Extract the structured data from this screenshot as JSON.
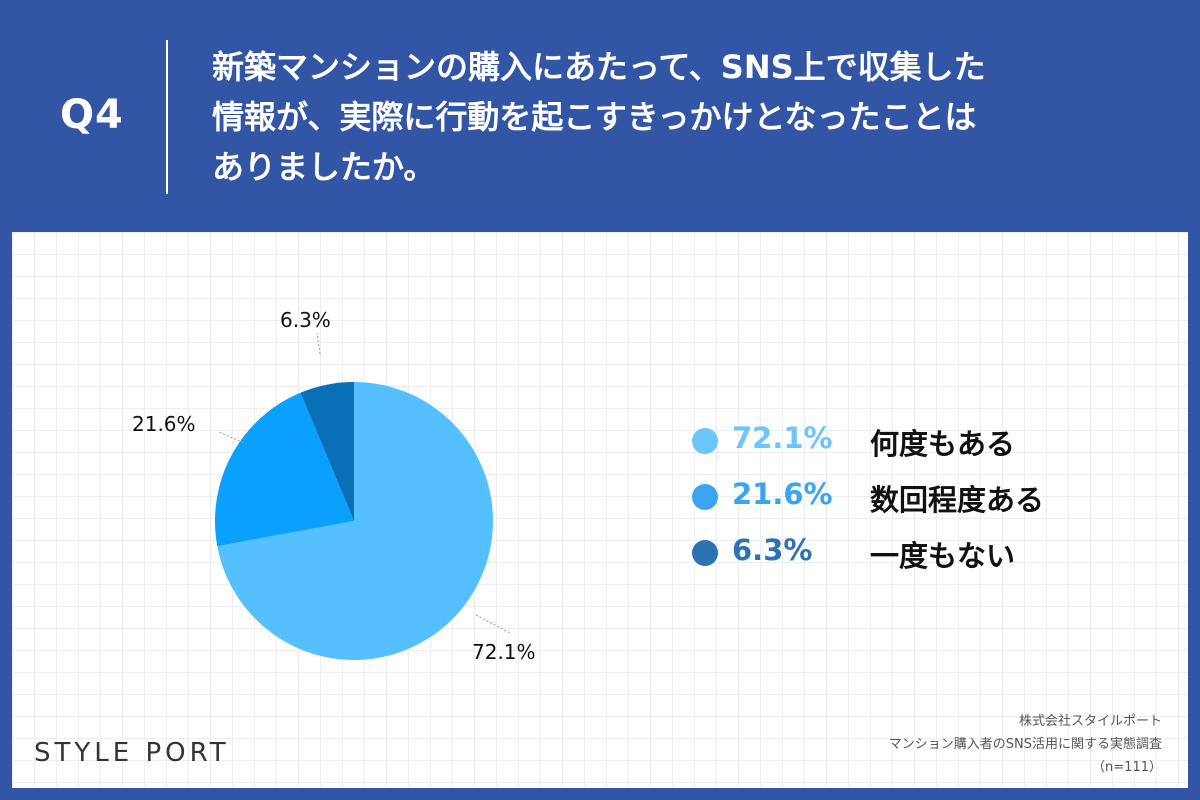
{
  "question": {
    "label": "Q4",
    "lines": [
      "新築マンションの購入にあたって、SNS上で収集した",
      "情報が、実際に行動を起こすきっかけとなったことは",
      "ありましたか。"
    ]
  },
  "chart_data": {
    "type": "pie",
    "categories": [
      "何度もある",
      "数回程度ある",
      "一度もない"
    ],
    "values": [
      72.1,
      21.6,
      6.3
    ],
    "value_labels": [
      "72.1%",
      "21.6%",
      "6.3%"
    ],
    "colors": [
      "#55c0ff",
      "#0aa0ff",
      "#0970b8"
    ],
    "legend_colors": [
      "#6cc6fb",
      "#3ba4f2",
      "#2d72b3"
    ],
    "start_angle_deg": 0,
    "direction": "clockwise",
    "legend_placement": "right"
  },
  "footer": {
    "logo": "STYLE PORT",
    "source_lines": [
      "株式会社スタイルポート",
      "マンション購入者のSNS活用に関する実態調査",
      "（n=111）"
    ]
  }
}
